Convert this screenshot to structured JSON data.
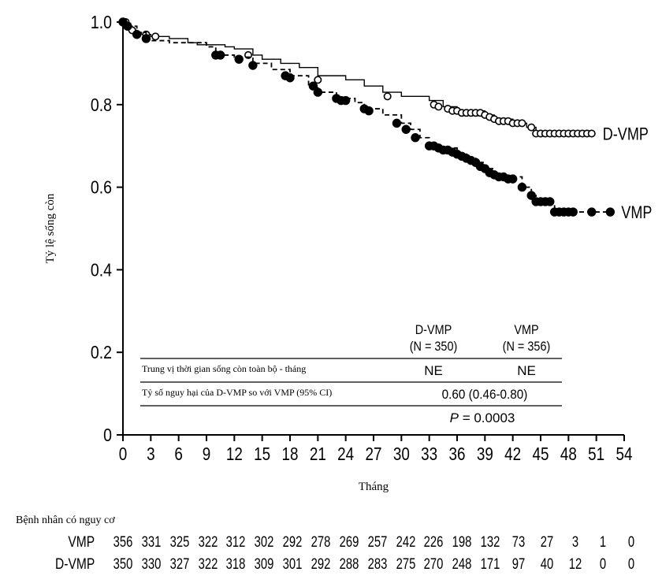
{
  "chart_data": {
    "type": "line",
    "ylabel": "Tỷ lệ sống còn",
    "xlabel": "Tháng",
    "xlim": [
      0,
      54
    ],
    "ylim": [
      0,
      1.0
    ],
    "x_ticks": [
      "0",
      "3",
      "6",
      "9",
      "12",
      "15",
      "18",
      "21",
      "24",
      "27",
      "30",
      "33",
      "36",
      "39",
      "42",
      "45",
      "48",
      "51",
      "54"
    ],
    "y_ticks": [
      "0",
      "0.2",
      "0.4",
      "0.6",
      "0.8",
      "1.0"
    ],
    "series": [
      {
        "name": "D-VMP",
        "line_style": "solid",
        "marker": "open-circle",
        "steps": [
          [
            0,
            1.0
          ],
          [
            0.5,
            0.99
          ],
          [
            1,
            0.98
          ],
          [
            1.5,
            0.975
          ],
          [
            2,
            0.97
          ],
          [
            3,
            0.965
          ],
          [
            5,
            0.96
          ],
          [
            7,
            0.95
          ],
          [
            8,
            0.945
          ],
          [
            11,
            0.94
          ],
          [
            12,
            0.935
          ],
          [
            14,
            0.92
          ],
          [
            15,
            0.91
          ],
          [
            17,
            0.9
          ],
          [
            19,
            0.89
          ],
          [
            21,
            0.87
          ],
          [
            24,
            0.86
          ],
          [
            26,
            0.845
          ],
          [
            28,
            0.83
          ],
          [
            30,
            0.82
          ],
          [
            33,
            0.81
          ],
          [
            34.5,
            0.795
          ],
          [
            36,
            0.785
          ],
          [
            39,
            0.775
          ],
          [
            40,
            0.765
          ],
          [
            42,
            0.755
          ],
          [
            43.5,
            0.745
          ],
          [
            44.5,
            0.73
          ],
          [
            50.5,
            0.73
          ]
        ],
        "censored": [
          [
            0.3,
            1.0
          ],
          [
            1,
            0.98
          ],
          [
            2.5,
            0.97
          ],
          [
            3.5,
            0.965
          ],
          [
            13.5,
            0.92
          ],
          [
            21,
            0.86
          ],
          [
            28.5,
            0.82
          ],
          [
            33.5,
            0.8
          ],
          [
            34,
            0.795
          ],
          [
            35,
            0.79
          ],
          [
            35.5,
            0.785
          ],
          [
            36,
            0.785
          ],
          [
            36.5,
            0.78
          ],
          [
            37,
            0.78
          ],
          [
            37.5,
            0.78
          ],
          [
            38,
            0.78
          ],
          [
            38.5,
            0.78
          ],
          [
            39,
            0.775
          ],
          [
            39.5,
            0.77
          ],
          [
            40,
            0.765
          ],
          [
            40.5,
            0.76
          ],
          [
            41,
            0.76
          ],
          [
            41.5,
            0.76
          ],
          [
            42,
            0.755
          ],
          [
            42.5,
            0.755
          ],
          [
            43,
            0.755
          ],
          [
            44,
            0.745
          ],
          [
            44.5,
            0.73
          ],
          [
            45,
            0.73
          ],
          [
            45.5,
            0.73
          ],
          [
            46,
            0.73
          ],
          [
            46.5,
            0.73
          ],
          [
            47,
            0.73
          ],
          [
            47.5,
            0.73
          ],
          [
            48,
            0.73
          ],
          [
            48.5,
            0.73
          ],
          [
            49,
            0.73
          ],
          [
            49.5,
            0.73
          ],
          [
            50,
            0.73
          ],
          [
            50.5,
            0.73
          ]
        ]
      },
      {
        "name": "VMP",
        "line_style": "dashed",
        "marker": "filled-circle",
        "steps": [
          [
            0,
            1.0
          ],
          [
            0.8,
            0.99
          ],
          [
            1.5,
            0.975
          ],
          [
            2.5,
            0.96
          ],
          [
            3,
            0.955
          ],
          [
            5,
            0.95
          ],
          [
            9,
            0.94
          ],
          [
            10,
            0.92
          ],
          [
            12,
            0.915
          ],
          [
            14,
            0.9
          ],
          [
            16,
            0.885
          ],
          [
            18,
            0.87
          ],
          [
            20,
            0.845
          ],
          [
            21,
            0.83
          ],
          [
            23,
            0.815
          ],
          [
            25,
            0.805
          ],
          [
            26,
            0.79
          ],
          [
            28,
            0.775
          ],
          [
            30,
            0.755
          ],
          [
            31,
            0.74
          ],
          [
            32,
            0.72
          ],
          [
            33,
            0.7
          ],
          [
            34,
            0.695
          ],
          [
            36,
            0.68
          ],
          [
            37,
            0.67
          ],
          [
            38,
            0.66
          ],
          [
            39,
            0.645
          ],
          [
            40,
            0.63
          ],
          [
            41,
            0.625
          ],
          [
            43,
            0.6
          ],
          [
            44,
            0.58
          ],
          [
            44.5,
            0.565
          ],
          [
            46,
            0.56
          ],
          [
            46.5,
            0.54
          ],
          [
            52.5,
            0.54
          ]
        ],
        "censored": [
          [
            0,
            1.0
          ],
          [
            0.5,
            0.99
          ],
          [
            1.5,
            0.97
          ],
          [
            2.5,
            0.96
          ],
          [
            10,
            0.92
          ],
          [
            10.5,
            0.92
          ],
          [
            12.5,
            0.91
          ],
          [
            14,
            0.895
          ],
          [
            17.5,
            0.87
          ],
          [
            18,
            0.865
          ],
          [
            20.5,
            0.845
          ],
          [
            21,
            0.83
          ],
          [
            23,
            0.815
          ],
          [
            23.5,
            0.81
          ],
          [
            24,
            0.81
          ],
          [
            26,
            0.79
          ],
          [
            26.5,
            0.785
          ],
          [
            29.5,
            0.755
          ],
          [
            30.5,
            0.74
          ],
          [
            31.5,
            0.72
          ],
          [
            33,
            0.7
          ],
          [
            33.5,
            0.7
          ],
          [
            34,
            0.695
          ],
          [
            34.5,
            0.69
          ],
          [
            35,
            0.69
          ],
          [
            35.5,
            0.685
          ],
          [
            36,
            0.68
          ],
          [
            36.5,
            0.675
          ],
          [
            37,
            0.67
          ],
          [
            37.5,
            0.665
          ],
          [
            38,
            0.66
          ],
          [
            38.5,
            0.65
          ],
          [
            39,
            0.645
          ],
          [
            39.5,
            0.635
          ],
          [
            40,
            0.63
          ],
          [
            40.5,
            0.625
          ],
          [
            41,
            0.625
          ],
          [
            41.5,
            0.62
          ],
          [
            42,
            0.62
          ],
          [
            43,
            0.6
          ],
          [
            44,
            0.58
          ],
          [
            44.5,
            0.565
          ],
          [
            45,
            0.565
          ],
          [
            45.5,
            0.565
          ],
          [
            46,
            0.565
          ],
          [
            46.5,
            0.54
          ],
          [
            47,
            0.54
          ],
          [
            47.5,
            0.54
          ],
          [
            48,
            0.54
          ],
          [
            48.5,
            0.54
          ],
          [
            50.5,
            0.54
          ],
          [
            52.5,
            0.54
          ]
        ]
      }
    ],
    "table": {
      "header": [
        "D-VMP",
        "VMP"
      ],
      "header_n": [
        "(N = 350)",
        "(N = 356)"
      ],
      "rows": [
        {
          "label": "Trung vị thời gian sống còn toàn bộ - tháng",
          "d_vmp": "NE",
          "vmp": "NE"
        },
        {
          "label": "Tỷ số nguy hại của D-VMP so với VMP (95% CI)",
          "value": "0.60 (0.46-0.80)"
        }
      ],
      "p_prefix": "P",
      "p_value": "= 0.0003"
    }
  },
  "risk_table": {
    "title": "Bệnh nhân có nguy cơ",
    "rows": [
      {
        "name": "VMP",
        "values": [
          "356",
          "331",
          "325",
          "322",
          "312",
          "302",
          "292",
          "278",
          "269",
          "257",
          "242",
          "226",
          "198",
          "132",
          "73",
          "27",
          "3",
          "1",
          "0"
        ]
      },
      {
        "name": "D-VMP",
        "values": [
          "350",
          "330",
          "327",
          "322",
          "318",
          "309",
          "301",
          "292",
          "288",
          "283",
          "275",
          "270",
          "248",
          "171",
          "97",
          "40",
          "12",
          "0",
          "0"
        ]
      }
    ]
  }
}
